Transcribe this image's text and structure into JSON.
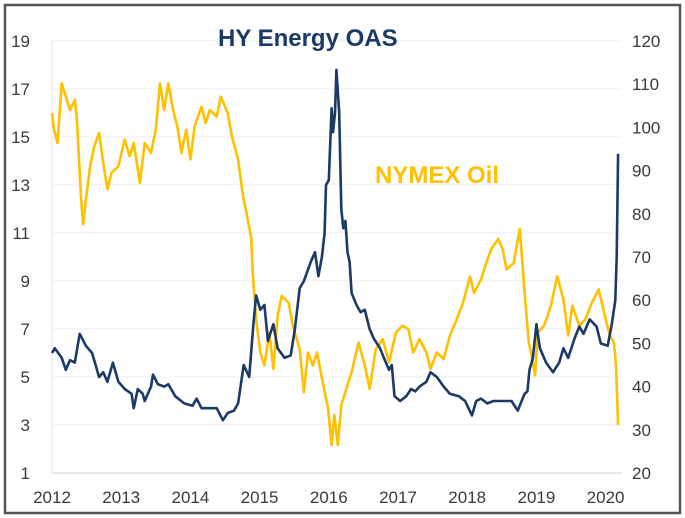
{
  "chart_data": {
    "type": "line",
    "annotations": [
      "HY Energy OAS",
      "NYMEX Oil"
    ],
    "x_ticks": [
      "2012",
      "2013",
      "2014",
      "2015",
      "2016",
      "2017",
      "2018",
      "2019",
      "2020"
    ],
    "xlim": [
      2012,
      2020.2
    ],
    "y_left": {
      "ticks": [
        1,
        3,
        5,
        7,
        9,
        11,
        13,
        15,
        17,
        19
      ],
      "lim": [
        1,
        19
      ]
    },
    "y_right": {
      "ticks": [
        20,
        30,
        40,
        50,
        60,
        70,
        80,
        90,
        100,
        110,
        120
      ],
      "lim": [
        20,
        120
      ]
    },
    "grid": true,
    "series": [
      {
        "name": "HY Energy OAS",
        "axis": "left",
        "color": "#1b3a66",
        "x": [
          2012.0,
          2012.04,
          2012.14,
          2012.2,
          2012.26,
          2012.33,
          2012.4,
          2012.49,
          2012.58,
          2012.68,
          2012.74,
          2012.8,
          2012.88,
          2012.96,
          2013.05,
          2013.15,
          2013.18,
          2013.24,
          2013.31,
          2013.34,
          2013.43,
          2013.46,
          2013.53,
          2013.62,
          2013.68,
          2013.78,
          2013.91,
          2014.03,
          2014.09,
          2014.16,
          2014.28,
          2014.38,
          2014.47,
          2014.54,
          2014.63,
          2014.69,
          2014.77,
          2014.85,
          2014.91,
          2014.95,
          2015.01,
          2015.07,
          2015.12,
          2015.2,
          2015.26,
          2015.36,
          2015.45,
          2015.51,
          2015.58,
          2015.64,
          2015.74,
          2015.8,
          2015.85,
          2015.9,
          2015.94,
          2015.96,
          2016.0,
          2016.04,
          2016.06,
          2016.09,
          2016.11,
          2016.15,
          2016.18,
          2016.21,
          2016.24,
          2016.27,
          2016.3,
          2016.33,
          2016.4,
          2016.46,
          2016.52,
          2016.59,
          2016.65,
          2016.74,
          2016.81,
          2016.87,
          2016.91,
          2016.95,
          2017.03,
          2017.12,
          2017.19,
          2017.25,
          2017.31,
          2017.41,
          2017.47,
          2017.56,
          2017.66,
          2017.75,
          2017.88,
          2017.97,
          2018.07,
          2018.13,
          2018.2,
          2018.29,
          2018.38,
          2018.51,
          2018.64,
          2018.73,
          2018.83,
          2018.87,
          2018.9,
          2018.95,
          2019.0,
          2019.05,
          2019.14,
          2019.24,
          2019.33,
          2019.39,
          2019.46,
          2019.55,
          2019.62,
          2019.68,
          2019.77,
          2019.87,
          2019.93,
          2020.03,
          2020.09,
          2020.14,
          2020.16,
          2020.18
        ],
        "values": [
          6.0,
          6.2,
          5.8,
          5.3,
          5.7,
          5.6,
          6.8,
          6.3,
          6.0,
          5.0,
          5.2,
          4.8,
          5.6,
          4.8,
          4.5,
          4.3,
          3.7,
          4.5,
          4.3,
          4.0,
          4.6,
          5.1,
          4.7,
          4.6,
          4.7,
          4.2,
          3.9,
          3.8,
          4.1,
          3.7,
          3.7,
          3.7,
          3.2,
          3.5,
          3.6,
          3.9,
          5.5,
          5.0,
          7.2,
          8.4,
          7.8,
          8.0,
          6.5,
          7.2,
          6.2,
          5.8,
          5.9,
          7.0,
          8.7,
          9.0,
          9.8,
          10.2,
          9.2,
          10.0,
          11.0,
          13.0,
          13.2,
          16.2,
          15.2,
          16.0,
          17.8,
          16.0,
          12.0,
          11.2,
          11.5,
          10.2,
          9.8,
          8.5,
          8.0,
          7.7,
          7.8,
          7.0,
          6.6,
          6.2,
          5.7,
          5.3,
          5.5,
          4.2,
          4.0,
          4.2,
          4.5,
          4.4,
          4.6,
          4.8,
          5.2,
          5.0,
          4.6,
          4.3,
          4.2,
          4.0,
          3.4,
          4.0,
          4.1,
          3.9,
          4.0,
          4.0,
          4.0,
          3.6,
          4.3,
          4.4,
          5.3,
          5.8,
          7.2,
          6.2,
          5.6,
          5.2,
          5.6,
          6.2,
          5.8,
          6.6,
          7.1,
          6.8,
          7.4,
          7.1,
          6.4,
          6.3,
          7.2,
          8.2,
          10.0,
          14.3
        ]
      },
      {
        "name": "NYMEX Oil",
        "axis": "right",
        "color": "#ffc000",
        "x": [
          2012.0,
          2012.03,
          2012.08,
          2012.14,
          2012.2,
          2012.26,
          2012.33,
          2012.36,
          2012.39,
          2012.42,
          2012.45,
          2012.49,
          2012.55,
          2012.61,
          2012.68,
          2012.74,
          2012.8,
          2012.86,
          2012.96,
          2013.05,
          2013.12,
          2013.18,
          2013.27,
          2013.34,
          2013.43,
          2013.5,
          2013.56,
          2013.62,
          2013.68,
          2013.75,
          2013.81,
          2013.87,
          2013.94,
          2014.0,
          2014.06,
          2014.16,
          2014.22,
          2014.28,
          2014.38,
          2014.44,
          2014.54,
          2014.6,
          2014.69,
          2014.76,
          2014.82,
          2014.88,
          2014.9,
          2014.95,
          2015.01,
          2015.07,
          2015.14,
          2015.2,
          2015.26,
          2015.32,
          2015.42,
          2015.48,
          2015.58,
          2015.64,
          2015.7,
          2015.77,
          2015.83,
          2015.92,
          2015.99,
          2016.04,
          2016.08,
          2016.13,
          2016.18,
          2016.27,
          2016.33,
          2016.43,
          2016.52,
          2016.59,
          2016.68,
          2016.78,
          2016.87,
          2016.97,
          2017.06,
          2017.15,
          2017.22,
          2017.31,
          2017.41,
          2017.47,
          2017.56,
          2017.66,
          2017.75,
          2017.85,
          2017.94,
          2018.04,
          2018.1,
          2018.2,
          2018.26,
          2018.35,
          2018.45,
          2018.51,
          2018.57,
          2018.67,
          2018.76,
          2018.83,
          2018.89,
          2018.95,
          2018.98,
          2019.02,
          2019.11,
          2019.21,
          2019.3,
          2019.39,
          2019.46,
          2019.52,
          2019.62,
          2019.71,
          2019.8,
          2019.9,
          2019.99,
          2020.06,
          2020.12,
          2020.15,
          2020.18
        ],
        "values": [
          103.3,
          99.5,
          96.4,
          110.2,
          107.1,
          104.0,
          106.4,
          101.8,
          92.6,
          83.4,
          77.6,
          83.4,
          91.0,
          95.6,
          98.7,
          91.8,
          85.7,
          89.5,
          91.0,
          97.2,
          93.3,
          96.4,
          87.2,
          96.4,
          94.1,
          99.5,
          110.2,
          104.0,
          110.2,
          104.0,
          100.2,
          94.1,
          99.5,
          92.6,
          100.2,
          104.8,
          101.0,
          104.0,
          102.5,
          107.1,
          103.3,
          97.9,
          92.6,
          84.1,
          79.5,
          74.2,
          66.3,
          55.6,
          47.9,
          44.9,
          52.5,
          44.1,
          56.4,
          61.0,
          59.4,
          54.1,
          48.7,
          38.7,
          47.9,
          44.9,
          47.9,
          40.3,
          34.9,
          26.5,
          33.4,
          26.5,
          35.7,
          40.3,
          43.3,
          50.2,
          44.9,
          39.5,
          48.7,
          51.0,
          45.6,
          52.5,
          54.1,
          53.3,
          47.9,
          51.0,
          47.9,
          44.1,
          47.9,
          46.4,
          51.8,
          55.6,
          59.4,
          65.5,
          61.7,
          64.8,
          67.9,
          71.9,
          74.2,
          71.9,
          67.1,
          68.6,
          76.5,
          61.7,
          50.2,
          45.6,
          42.6,
          52.5,
          54.1,
          58.7,
          65.5,
          60.2,
          51.8,
          58.7,
          54.1,
          55.6,
          59.4,
          62.5,
          56.4,
          51.8,
          50.2,
          44.9,
          31.1
        ]
      }
    ]
  }
}
